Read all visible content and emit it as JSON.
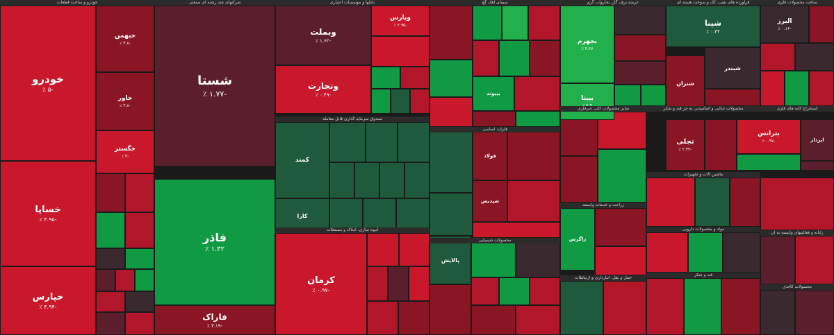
{
  "chart_data": {
    "type": "heatmap",
    "colors": {
      "strong_red": "#c9182c",
      "red": "#b2162a",
      "dark_red": "#8a1524",
      "maroon": "#5a1e2c",
      "dark_grey": "#3a2a30",
      "green": "#119a44",
      "dark_green": "#1f5a3c",
      "light_green": "#22b04c"
    },
    "sectors": [
      {
        "name": "خودرو و ساخت قطعات"
      },
      {
        "name": "شرکتهای چند رشته ای صنعتی"
      },
      {
        "name": "بانکها و موسسات اعتباری"
      },
      {
        "name": "سیمان آهک گچ"
      },
      {
        "name": "عرضه برق، گاز، بخاروآب گرم"
      },
      {
        "name": "فراورده های نفتی، کک و سوخت هسته ای"
      },
      {
        "name": "ساخت محصولات فلزی"
      },
      {
        "name": "صندوق سرمایه گذاری قابل معامله"
      },
      {
        "name": "فلزات اساسی"
      },
      {
        "name": "محصولات شیمیایی"
      },
      {
        "name": "انبوه سازی، املاک و مستغلات"
      },
      {
        "name": "حمل و نقل، انبارداری و ارتباطات"
      },
      {
        "name": "زراعت و خدمات وابسته"
      },
      {
        "name": "سایر محصولات کانی غیرفلزی"
      },
      {
        "name": "محصولات غذایی و آشامیدنی به جز قند و شکر"
      },
      {
        "name": "استخراج کانه های فلزی"
      },
      {
        "name": "ماشین آلات و تجهیزات"
      },
      {
        "name": "مواد و محصولات دارویی"
      },
      {
        "name": "رایانه و فعالیتهای وابسته به آن"
      },
      {
        "name": "قند و شکر"
      },
      {
        "name": "محصولات کاغذی"
      }
    ],
    "tiles": [
      {
        "symbol": "خودرو",
        "change": "-۵ ٪",
        "color": "strong_red"
      },
      {
        "symbol": "خساپا",
        "change": "-۴.۹۵ ٪",
        "color": "strong_red"
      },
      {
        "symbol": "خپارس",
        "change": "-۴.۹۴ ٪",
        "color": "strong_red"
      },
      {
        "symbol": "خبهمن",
        "change": "-۳.۸ ٪",
        "color": "dark_red"
      },
      {
        "symbol": "خاور",
        "change": "-۳.۸ ٪",
        "color": "dark_red"
      },
      {
        "symbol": "خگستر",
        "change": "-۴ ٪",
        "color": "strong_red"
      },
      {
        "symbol": "شستا",
        "change": "-۱.۷۷ ٪",
        "color": "maroon"
      },
      {
        "symbol": "فاذر",
        "change": "۱.۳۲ ٪",
        "color": "green"
      },
      {
        "symbol": "فاراک",
        "change": "-۳.۱۹ ٪",
        "color": "dark_red"
      },
      {
        "symbol": "وبملت",
        "change": "-۱.۶۲ ٪",
        "color": "maroon"
      },
      {
        "symbol": "وتجارت",
        "change": "-۰.۴۹ ٪",
        "color": "strong_red"
      },
      {
        "symbol": "وپارس",
        "change": "-۲.۹۵ ٪",
        "color": "strong_red"
      },
      {
        "symbol": "کرمان",
        "change": "-۰.۹۷ ٪",
        "color": "strong_red"
      },
      {
        "symbol": "کمند",
        "change": "",
        "color": "dark_green"
      },
      {
        "symbol": "کارا",
        "change": "",
        "color": "dark_green"
      },
      {
        "symbol": "پالایش",
        "change": "",
        "color": "dark_green"
      },
      {
        "symbol": "فولاد",
        "change": "",
        "color": "dark_red"
      },
      {
        "symbol": "شپدیس",
        "change": "",
        "color": "dark_red"
      },
      {
        "symbol": "بپیوند",
        "change": "",
        "color": "green"
      },
      {
        "symbol": "بجهرم",
        "change": "۴.۶۷ ٪",
        "color": "light_green"
      },
      {
        "symbol": "بپیتا",
        "change": "۴.۹ ٪",
        "color": "light_green"
      },
      {
        "symbol": "شپنا",
        "change": "۰.۴۴ ٪",
        "color": "dark_green"
      },
      {
        "symbol": "شبندر",
        "change": "",
        "color": "dark_grey"
      },
      {
        "symbol": "شتران",
        "change": "",
        "color": "dark_red"
      },
      {
        "symbol": "البرز",
        "change": "-۰.۱۶ ٪",
        "color": "dark_grey"
      },
      {
        "symbol": "تجلی",
        "change": "-۲.۴۳ ٪",
        "color": "dark_red"
      },
      {
        "symbol": "بترانس",
        "change": "-۰.۹۷ ٪",
        "color": "strong_red"
      },
      {
        "symbol": "اپرداز",
        "change": "",
        "color": "maroon"
      },
      {
        "symbol": "زاگرس",
        "change": "",
        "color": "green"
      }
    ]
  }
}
